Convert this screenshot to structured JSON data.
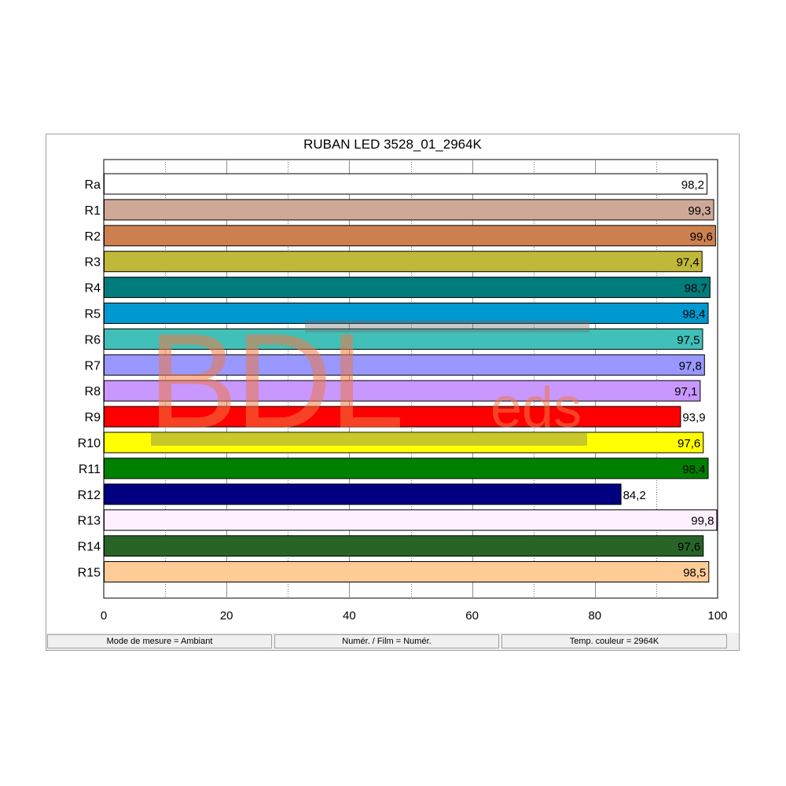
{
  "chart_data": {
    "type": "bar",
    "orientation": "horizontal",
    "title": "RUBAN LED 3528_01_2964K",
    "xlabel": "",
    "ylabel": "",
    "xlim": [
      0,
      100
    ],
    "xticks": [
      0,
      20,
      40,
      60,
      80,
      100
    ],
    "xtick_labels": [
      "0",
      "20",
      "40",
      "60",
      "80",
      "100"
    ],
    "grid": "vertical-dotted",
    "categories": [
      "Ra",
      "R1",
      "R2",
      "R3",
      "R4",
      "R5",
      "R6",
      "R7",
      "R8",
      "R9",
      "R10",
      "R11",
      "R12",
      "R13",
      "R14",
      "R15"
    ],
    "values": [
      98.2,
      99.3,
      99.6,
      97.4,
      98.7,
      98.4,
      97.5,
      97.8,
      97.1,
      93.9,
      97.6,
      98.4,
      84.2,
      99.8,
      97.6,
      98.5
    ],
    "value_labels": [
      "98,2",
      "99,3",
      "99,6",
      "97,4",
      "98,7",
      "98,4",
      "97,5",
      "97,8",
      "97,1",
      "93,9",
      "97,6",
      "98,4",
      "84,2",
      "99,8",
      "97,6",
      "98,5"
    ],
    "colors": [
      "#ffffff",
      "#d0a898",
      "#cc8050",
      "#c0b838",
      "#007c7c",
      "#0098d0",
      "#40c0b8",
      "#9898ff",
      "#c898ff",
      "#ff0000",
      "#ffff00",
      "#008000",
      "#000080",
      "#fff0ff",
      "#286428",
      "#ffcc98"
    ]
  },
  "status_bar": {
    "mode": "Mode de mesure = Ambiant",
    "film": "Numér. / Film = Numér.",
    "temp": "Temp. couleur = 2964K"
  },
  "watermark": {
    "text_main": "BDL",
    "text_sub": "eds"
  }
}
